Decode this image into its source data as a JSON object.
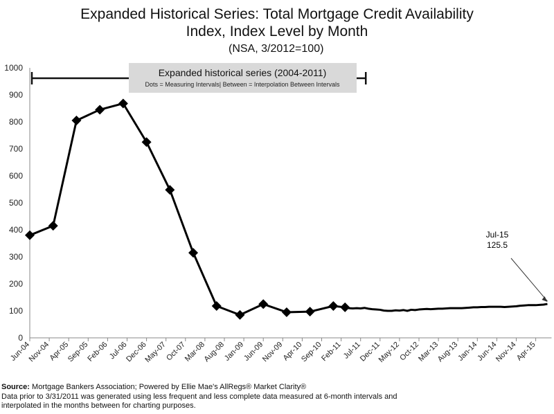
{
  "chart_data": {
    "type": "line",
    "title_line1": "Expanded Historical Series: Total Mortgage Credit Availability",
    "title_line2": "Index, Index Level by Month",
    "subtitle": "(NSA, 3/2012=100)",
    "ylim": [
      0,
      1000
    ],
    "yticks": [
      0,
      100,
      200,
      300,
      400,
      500,
      600,
      700,
      800,
      900,
      1000
    ],
    "xticks": [
      "Jun-04",
      "Nov-04",
      "Apr-05",
      "Sep-05",
      "Feb-06",
      "Jul-06",
      "Dec-06",
      "May-07",
      "Oct-07",
      "Mar-08",
      "Aug-08",
      "Jan-09",
      "Jun-09",
      "Nov-09",
      "Apr-10",
      "Sep-10",
      "Feb-11",
      "Jul-11",
      "Dec-11",
      "May-12",
      "Oct-12",
      "Mar-13",
      "Aug-13",
      "Jan-14",
      "Jun-14",
      "Nov-14",
      "Apr-15"
    ],
    "x_start": "Jun-04",
    "x_end": "Jul-15",
    "grid": false,
    "measured_points": [
      [
        "Jun-04",
        380
      ],
      [
        "Dec-04",
        415
      ],
      [
        "Jun-05",
        805
      ],
      [
        "Dec-05",
        845
      ],
      [
        "Jun-06",
        868
      ],
      [
        "Dec-06",
        725
      ],
      [
        "Jun-07",
        548
      ],
      [
        "Dec-07",
        315
      ],
      [
        "Jun-08",
        118
      ],
      [
        "Dec-08",
        85
      ],
      [
        "Jun-09",
        125
      ],
      [
        "Dec-09",
        95
      ],
      [
        "Jun-10",
        97
      ],
      [
        "Dec-10",
        118
      ],
      [
        "Mar-11",
        113
      ]
    ],
    "monthly_from": "Apr-11",
    "monthly_values": [
      110,
      109,
      110,
      109,
      111,
      108,
      106,
      105,
      104,
      101,
      100,
      100,
      102,
      101,
      103,
      100,
      104,
      103,
      105,
      106,
      107,
      106,
      107,
      108,
      108,
      109,
      110,
      110,
      110,
      110,
      111,
      112,
      113,
      113,
      114,
      114,
      115,
      115,
      115,
      115,
      114,
      115,
      116,
      117,
      119,
      120,
      121,
      121,
      121,
      122,
      123,
      125.5
    ],
    "bracket": {
      "title": "Expanded historical series (2004-2011)",
      "note": "Dots = Measuring Intervals| Between = Interpolation Between Intervals",
      "from": "Jun-04",
      "to": "Mar-11"
    },
    "annotation": {
      "label": "Jul-15",
      "value": "125.5"
    }
  },
  "footer": {
    "source_label": "Source:",
    "source": " Mortgage Bankers Association; Powered by Ellie Mae's AllRegs® Market Clarity®",
    "note1": "Data prior to 3/31/2011 was generated using less frequent and less complete data measured at 6-month intervals and",
    "note2": "interpolated in the months between for charting purposes."
  }
}
